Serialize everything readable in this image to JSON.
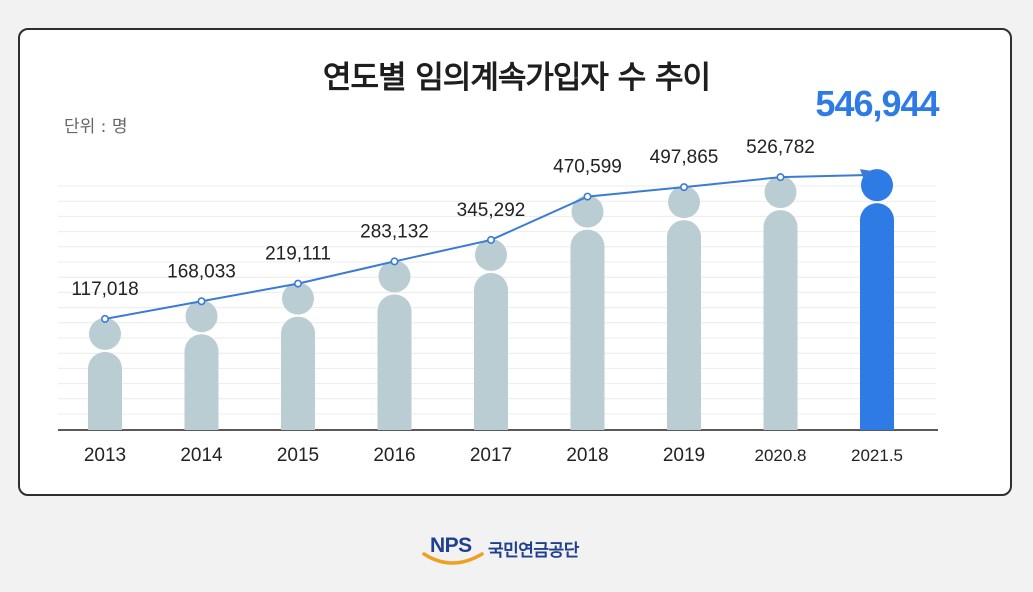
{
  "header": {
    "title": "연도별 임의계속가입자 수 추이",
    "unit": "단위 : 명"
  },
  "footer": {
    "logo_text": "NPS",
    "org_name": "국민연금공단"
  },
  "colors": {
    "bar": "#b9cdd3",
    "highlight": "#2f7be6",
    "line": "#3a7bd5",
    "brand_blue": "#1f3f8f",
    "brand_orange": "#f0a020"
  },
  "chart_data": {
    "type": "bar",
    "title": "연도별 임의계속가입자 수 추이",
    "ylabel": "단위 : 명",
    "categories": [
      "2013",
      "2014",
      "2015",
      "2016",
      "2017",
      "2018",
      "2019",
      "2020.8",
      "2021.5"
    ],
    "values": [
      117018,
      168033,
      219111,
      283132,
      345292,
      470599,
      497865,
      526782,
      546944
    ],
    "labels": [
      "117,018",
      "168,033",
      "219,111",
      "283,132",
      "345,292",
      "470,599",
      "497,865",
      "526,782",
      "546,944"
    ],
    "overlay": "trend-line",
    "highlight_index": 8,
    "grid": true
  }
}
